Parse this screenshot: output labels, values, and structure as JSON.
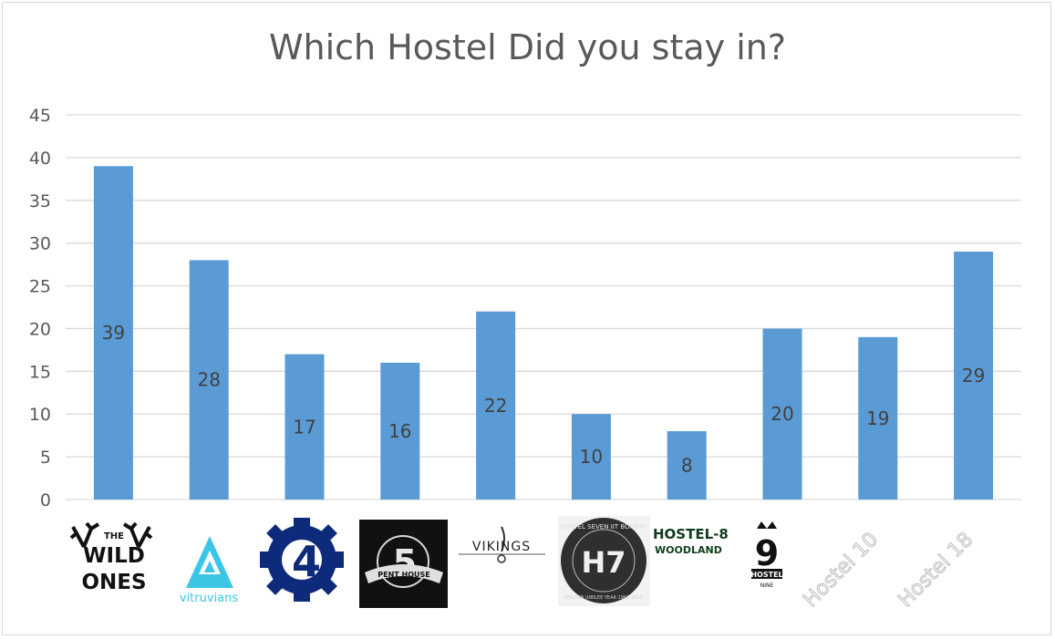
{
  "chart_data": {
    "type": "bar",
    "title": "Which Hostel Did you stay in?",
    "xlabel": "",
    "ylabel": "",
    "ylim": [
      0,
      45
    ],
    "yticks": [
      "0",
      "5",
      "10",
      "15",
      "20",
      "25",
      "30",
      "35",
      "40",
      "45"
    ],
    "grid": true,
    "categories": [
      "THE WILD ONES",
      "vitruvians",
      "4",
      "5 PENT HOUSE",
      "VIKINGS",
      "HOSTEL SEVEN IIT BOMBAY",
      "HOSTEL-8 WOODLAND",
      "HOSTEL NINE",
      "Hostel 10",
      "Hostel 18"
    ],
    "values": [
      39,
      28,
      17,
      16,
      22,
      10,
      8,
      20,
      19,
      29
    ],
    "data_labels": [
      "39",
      "28",
      "17",
      "16",
      "22",
      "10",
      "8",
      "20",
      "19",
      "29"
    ],
    "bar_color": "#5b9bd5",
    "grid_color": "#d9d9d9"
  },
  "logos": {
    "wild_top": "THE",
    "wild_mid": "WILD",
    "wild_bot": "ONES",
    "vitruvians": "vitruvians",
    "h4": "4",
    "h5_num": "5",
    "h5_text": "PENT HOUSE",
    "vikings": "VIKINGS",
    "h7_ring": "HOSTEL SEVEN IIT BOMBAY",
    "h7_sub": "GOLDEN JUBILEE YEAR 1962-2012",
    "h7_mark": "H7",
    "h8_title": "HOSTEL-8",
    "h8_sub": "WOODLAND",
    "h9_num": "9",
    "h9_text": "HOSTEL",
    "h9_sub": "NINE"
  }
}
